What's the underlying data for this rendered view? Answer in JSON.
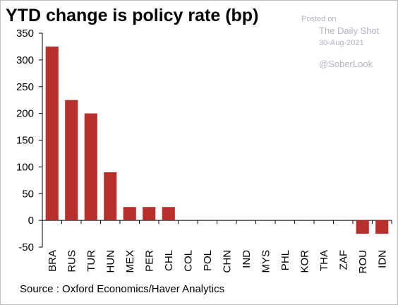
{
  "watermark": {
    "posted": "Posted on",
    "name": "The Daily Shot",
    "date": "30-Aug-2021",
    "handle": "@SoberLook"
  },
  "chart_data": {
    "type": "bar",
    "title": "YTD change is policy rate (bp)",
    "source": "Source : Oxford Economics/Haver Analytics",
    "categories": [
      "BRA",
      "RUS",
      "TUR",
      "HUN",
      "MEX",
      "PER",
      "CHL",
      "COL",
      "POL",
      "CHN",
      "IND",
      "MYS",
      "PHL",
      "KOR",
      "THA",
      "ZAF",
      "ROU",
      "IDN"
    ],
    "values": [
      325,
      225,
      200,
      90,
      25,
      25,
      25,
      0,
      0,
      0,
      0,
      0,
      0,
      0,
      0,
      0,
      -25,
      -25
    ],
    "ylim": [
      -50,
      350
    ],
    "yticks": [
      350,
      300,
      250,
      200,
      150,
      100,
      50,
      0,
      -50
    ],
    "ytick_labels": [
      "350",
      "300",
      "250",
      "200",
      "150",
      "100",
      "50",
      "0",
      "-50"
    ],
    "xlabel": "",
    "ylabel": "",
    "grid": false,
    "bar_color": "#b8302b"
  }
}
